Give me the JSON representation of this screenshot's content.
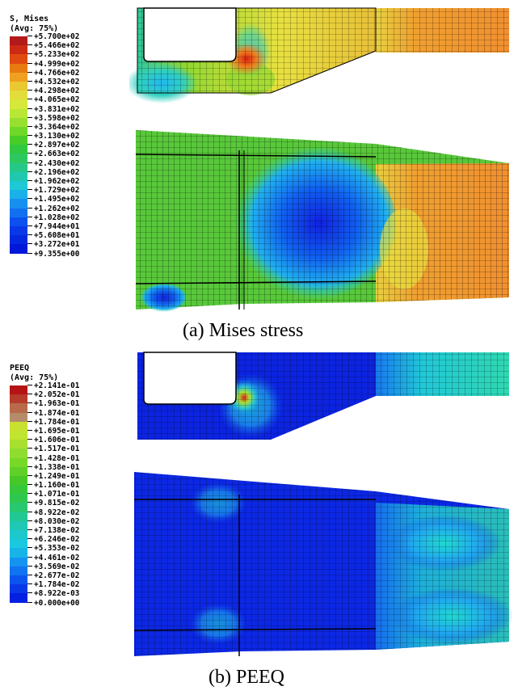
{
  "legend_a": {
    "title": "S, Mises",
    "subtitle": "(Avg: 75%)",
    "ticks": [
      "+5.700e+02",
      "+5.466e+02",
      "+5.233e+02",
      "+4.999e+02",
      "+4.766e+02",
      "+4.532e+02",
      "+4.298e+02",
      "+4.065e+02",
      "+3.831e+02",
      "+3.598e+02",
      "+3.364e+02",
      "+3.130e+02",
      "+2.897e+02",
      "+2.663e+02",
      "+2.430e+02",
      "+2.196e+02",
      "+1.962e+02",
      "+1.729e+02",
      "+1.495e+02",
      "+1.262e+02",
      "+1.028e+02",
      "+7.944e+01",
      "+5.608e+01",
      "+3.272e+01",
      "+9.355e+00"
    ],
    "colors": [
      "#b31a1a",
      "#cc2a14",
      "#e04a10",
      "#e87a12",
      "#f0a020",
      "#e9c832",
      "#e2dc3c",
      "#d6e83a",
      "#b8e835",
      "#98e030",
      "#70d828",
      "#48cc28",
      "#30c840",
      "#2ec860",
      "#26c88a",
      "#20c8b0",
      "#1ec8d4",
      "#1ab0e8",
      "#1690f0",
      "#1270f0",
      "#0c50f0",
      "#0838e8",
      "#0428e0",
      "#0018d8"
    ]
  },
  "legend_b": {
    "title": "PEEQ",
    "subtitle": "(Avg: 75%)",
    "ticks": [
      "+2.141e-01",
      "+2.052e-01",
      "+1.963e-01",
      "+1.874e-01",
      "+1.784e-01",
      "+1.695e-01",
      "+1.606e-01",
      "+1.517e-01",
      "+1.428e-01",
      "+1.338e-01",
      "+1.249e-01",
      "+1.160e-01",
      "+1.071e-01",
      "+9.815e-02",
      "+8.922e-02",
      "+8.030e-02",
      "+7.138e-02",
      "+6.246e-02",
      "+5.353e-02",
      "+4.461e-02",
      "+3.569e-02",
      "+2.677e-02",
      "+1.784e-02",
      "+8.922e-03",
      "+0.000e+00"
    ],
    "colors": [
      "#b41414",
      "#b83a2a",
      "#b86a4a",
      "#b48c6a",
      "#c8e030",
      "#c0e430",
      "#a8e030",
      "#90dc30",
      "#78d828",
      "#60d028",
      "#48c828",
      "#36c83a",
      "#2ec850",
      "#28c870",
      "#22c894",
      "#1ec8b4",
      "#1cc8cc",
      "#1ac8e0",
      "#18b4e8",
      "#1494f0",
      "#1074f0",
      "#0c54f0",
      "#0838e8",
      "#0420e0"
    ]
  },
  "captions": {
    "a": "(a) Mises stress",
    "b": "(b) PEEQ"
  }
}
